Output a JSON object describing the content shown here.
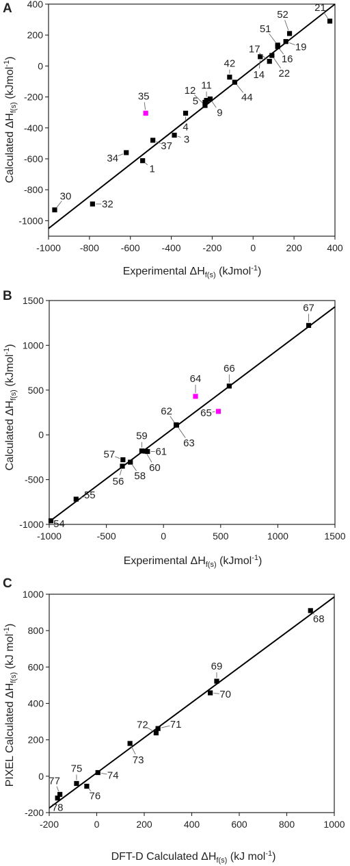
{
  "chart_data": [
    {
      "type": "scatter",
      "panel": "A",
      "xlabel_html": "Experimental ΔH<sub>f(s)</sub> (kJmol<sup>-1</sup>)",
      "xlabel": "Experimental ΔH f(s) (kJmol-1)",
      "ylabel": "Calculated ΔH f(s) (kJmol-1)",
      "xlim": [
        -1000,
        400
      ],
      "ylim": [
        -1100,
        400
      ],
      "xticks": [
        -1000,
        -800,
        -600,
        -400,
        -200,
        0,
        200,
        400
      ],
      "yticks": [
        -1000,
        -800,
        -600,
        -400,
        -200,
        0,
        200,
        400
      ],
      "fit_line": [
        [
          -1000,
          -1050
        ],
        [
          400,
          400
        ]
      ],
      "grid": false,
      "points": [
        {
          "label": "1",
          "x": -540,
          "y": -612,
          "color": "#000000"
        },
        {
          "label": "3",
          "x": -385,
          "y": -447,
          "color": "#000000"
        },
        {
          "label": "4",
          "x": -330,
          "y": -305,
          "color": "#000000"
        },
        {
          "label": "5",
          "x": -235,
          "y": -235,
          "color": "#000000"
        },
        {
          "label": "9",
          "x": -210,
          "y": -213,
          "color": "#000000"
        },
        {
          "label": "11",
          "x": -228,
          "y": -222,
          "color": "#000000"
        },
        {
          "label": "12",
          "x": -235,
          "y": -255,
          "color": "#000000"
        },
        {
          "label": "14",
          "x": 35,
          "y": 60,
          "color": "#000000"
        },
        {
          "label": "16",
          "x": 120,
          "y": 125,
          "color": "#000000"
        },
        {
          "label": "17",
          "x": 80,
          "y": 30,
          "color": "#000000"
        },
        {
          "label": "19",
          "x": 160,
          "y": 158,
          "color": "#000000"
        },
        {
          "label": "21",
          "x": 375,
          "y": 290,
          "color": "#000000"
        },
        {
          "label": "22",
          "x": 92,
          "y": 68,
          "color": "#000000"
        },
        {
          "label": "30",
          "x": -970,
          "y": -930,
          "color": "#000000"
        },
        {
          "label": "32",
          "x": -785,
          "y": -892,
          "color": "#000000"
        },
        {
          "label": "34",
          "x": -620,
          "y": -560,
          "color": "#000000"
        },
        {
          "label": "35",
          "x": -525,
          "y": -305,
          "color": "#ff00ff"
        },
        {
          "label": "37",
          "x": -490,
          "y": -480,
          "color": "#000000"
        },
        {
          "label": "42",
          "x": -115,
          "y": -72,
          "color": "#000000"
        },
        {
          "label": "44",
          "x": -90,
          "y": -105,
          "color": "#000000"
        },
        {
          "label": "51",
          "x": 120,
          "y": 135,
          "color": "#000000"
        },
        {
          "label": "52",
          "x": 178,
          "y": 210,
          "color": "#000000"
        }
      ]
    },
    {
      "type": "scatter",
      "panel": "B",
      "xlabel_html": "Experimental ΔH<sub>f(s)</sub> (kJmol<sup>-1</sup>)",
      "xlabel": "Experimental ΔH f(s) (kJmol-1)",
      "ylabel": "Calculated ΔH f(s) (kJmol-1)",
      "xlim": [
        -1000,
        1500
      ],
      "ylim": [
        -1000,
        1500
      ],
      "xticks": [
        -1000,
        -500,
        0,
        500,
        1000,
        1500
      ],
      "yticks": [
        -1000,
        -500,
        0,
        500,
        1000,
        1500
      ],
      "fit_line": [
        [
          -1000,
          -970
        ],
        [
          1500,
          1430
        ]
      ],
      "grid": false,
      "points": [
        {
          "label": "54",
          "x": -985,
          "y": -960,
          "color": "#000000"
        },
        {
          "label": "55",
          "x": -765,
          "y": -718,
          "color": "#000000"
        },
        {
          "label": "56",
          "x": -360,
          "y": -350,
          "color": "#000000"
        },
        {
          "label": "57",
          "x": -355,
          "y": -278,
          "color": "#000000"
        },
        {
          "label": "58",
          "x": -290,
          "y": -305,
          "color": "#000000"
        },
        {
          "label": "59",
          "x": -190,
          "y": -180,
          "color": "#000000"
        },
        {
          "label": "60",
          "x": -160,
          "y": -182,
          "color": "#000000"
        },
        {
          "label": "61",
          "x": -140,
          "y": -186,
          "color": "#000000"
        },
        {
          "label": "62",
          "x": 110,
          "y": 112,
          "color": "#000000"
        },
        {
          "label": "63",
          "x": 115,
          "y": 108,
          "color": "#000000"
        },
        {
          "label": "64",
          "x": 280,
          "y": 430,
          "color": "#ff00ff"
        },
        {
          "label": "65",
          "x": 480,
          "y": 262,
          "color": "#ff00ff"
        },
        {
          "label": "66",
          "x": 575,
          "y": 545,
          "color": "#000000"
        },
        {
          "label": "67",
          "x": 1270,
          "y": 1222,
          "color": "#000000"
        }
      ]
    },
    {
      "type": "scatter",
      "panel": "C",
      "xlabel_html": "DFT-D Calculated ΔH<sub>f(s)</sub> (kJ mol<sup>-1</sup>)",
      "xlabel": "DFT-D Calculated ΔH f(s) (kJ mol-1)",
      "ylabel": "PIXEL Calculated ΔH f(s) (kJ mol-1)",
      "xlim": [
        -200,
        1000
      ],
      "ylim": [
        -200,
        1000
      ],
      "xticks": [
        -200,
        0,
        200,
        400,
        600,
        800,
        1000
      ],
      "yticks": [
        -200,
        0,
        200,
        400,
        600,
        800,
        1000
      ],
      "fit_line": [
        [
          -200,
          -175
        ],
        [
          1000,
          985
        ]
      ],
      "grid": false,
      "points": [
        {
          "label": "68",
          "x": 900,
          "y": 910,
          "color": "#000000"
        },
        {
          "label": "69",
          "x": 505,
          "y": 522,
          "color": "#000000"
        },
        {
          "label": "70",
          "x": 478,
          "y": 458,
          "color": "#000000"
        },
        {
          "label": "71",
          "x": 258,
          "y": 262,
          "color": "#000000"
        },
        {
          "label": "72",
          "x": 250,
          "y": 238,
          "color": "#000000"
        },
        {
          "label": "73",
          "x": 140,
          "y": 180,
          "color": "#000000"
        },
        {
          "label": "74",
          "x": 5,
          "y": 20,
          "color": "#000000"
        },
        {
          "label": "75",
          "x": -85,
          "y": -40,
          "color": "#000000"
        },
        {
          "label": "76",
          "x": -42,
          "y": -55,
          "color": "#000000"
        },
        {
          "label": "77",
          "x": -155,
          "y": -100,
          "color": "#000000"
        },
        {
          "label": "78",
          "x": -165,
          "y": -120,
          "color": "#000000"
        }
      ]
    }
  ]
}
